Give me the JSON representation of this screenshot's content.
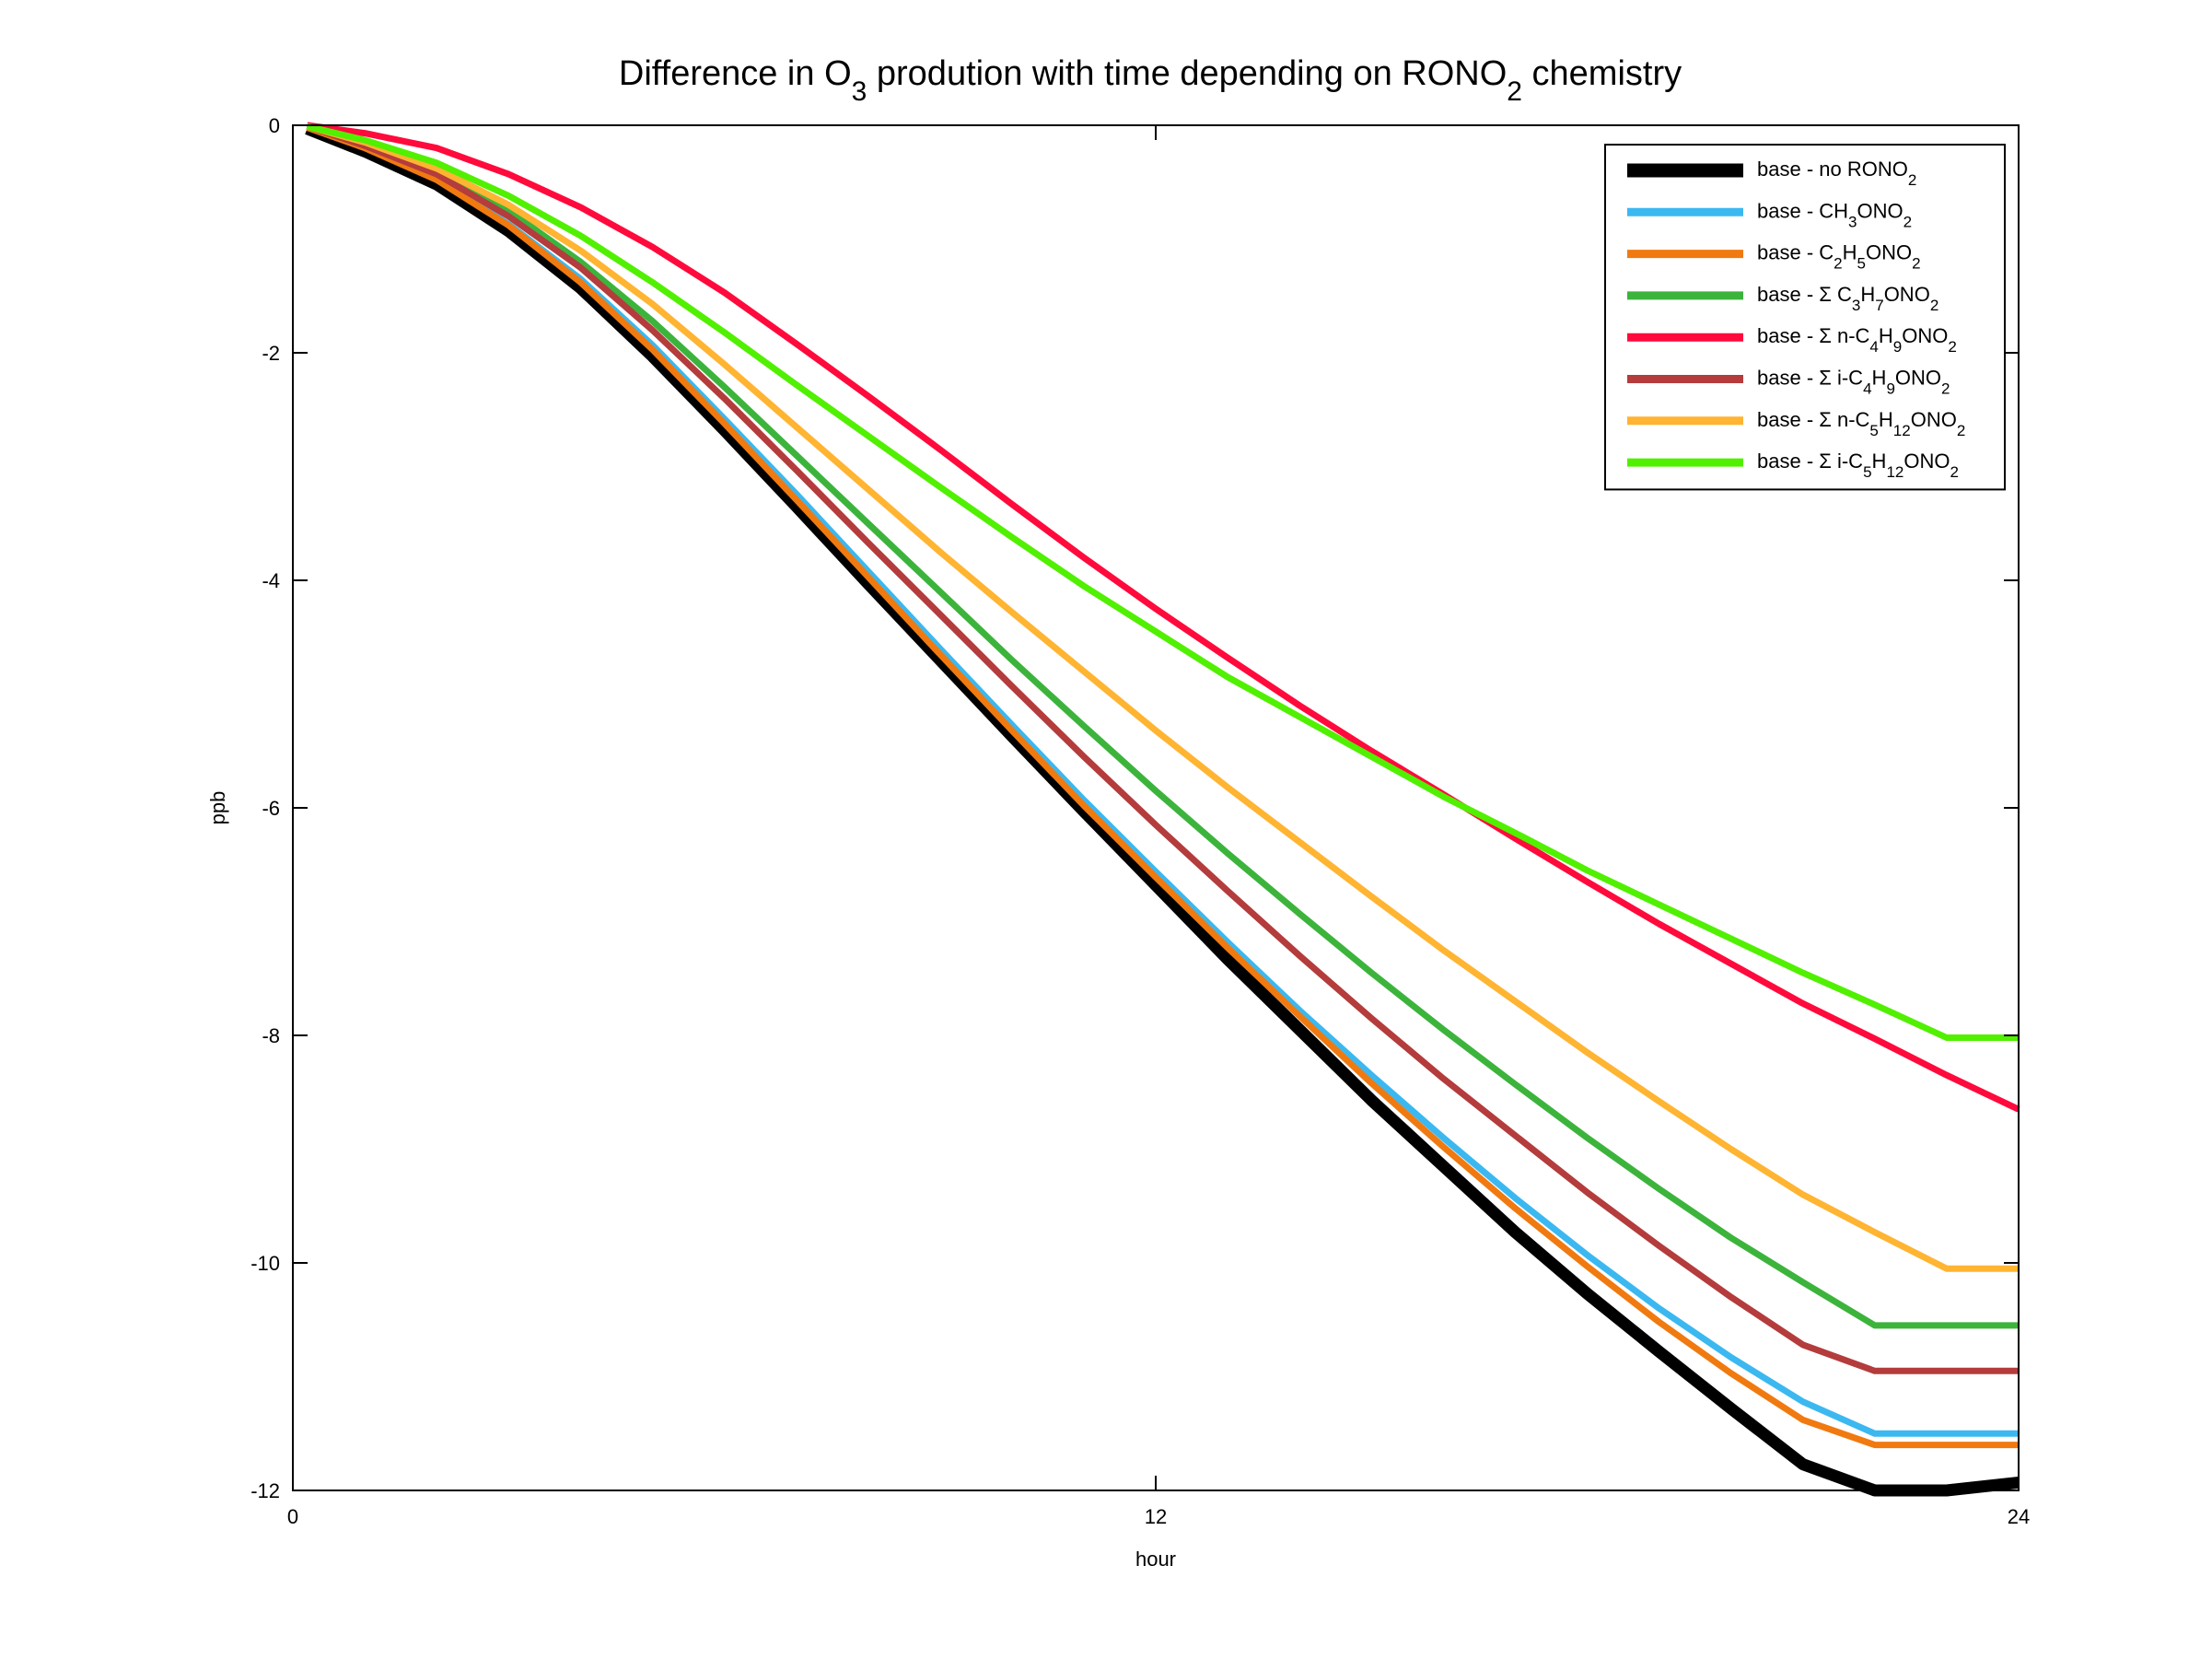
{
  "chart_data": {
    "type": "line",
    "title": {
      "parts": [
        {
          "t": "Difference in O",
          "sub": false
        },
        {
          "t": "3",
          "sub": true
        },
        {
          "t": " prodution with time depending on RONO",
          "sub": false
        },
        {
          "t": "2",
          "sub": true
        },
        {
          "t": " chemistry",
          "sub": false
        }
      ]
    },
    "xlabel": "hour",
    "ylabel": "ppb",
    "xlim": [
      0,
      24
    ],
    "ylim": [
      -12,
      0
    ],
    "xticks": [
      0,
      12,
      24
    ],
    "yticks": [
      0,
      -2,
      -4,
      -6,
      -8,
      -10,
      -12
    ],
    "grid": false,
    "legend_position": "top-right",
    "x": [
      0.2,
      1,
      2,
      3,
      4,
      5,
      6,
      7,
      8,
      9,
      10,
      11,
      12,
      13,
      14,
      15,
      16,
      17,
      18,
      19,
      20,
      21,
      22,
      23,
      24
    ],
    "series": [
      {
        "name": "base - no RONO2",
        "label_parts": [
          {
            "t": "base - no RONO",
            "sub": false
          },
          {
            "t": "2",
            "sub": true
          }
        ],
        "color": "#000000",
        "width": 13,
        "values": [
          -0.03,
          -0.23,
          -0.52,
          -0.93,
          -1.43,
          -2.03,
          -2.68,
          -3.35,
          -4.03,
          -4.7,
          -5.37,
          -6.03,
          -6.68,
          -7.33,
          -7.95,
          -8.57,
          -9.15,
          -9.73,
          -10.27,
          -10.78,
          -11.28,
          -11.77,
          -12.0,
          -12.0,
          -11.93
        ]
      },
      {
        "name": "base - CH3ONO2",
        "label_parts": [
          {
            "t": "base - CH",
            "sub": false
          },
          {
            "t": "3",
            "sub": true
          },
          {
            "t": "ONO",
            "sub": false
          },
          {
            "t": "2",
            "sub": true
          }
        ],
        "color": "#3cb8f0",
        "width": 7,
        "values": [
          -0.02,
          -0.19,
          -0.47,
          -0.87,
          -1.35,
          -1.93,
          -2.58,
          -3.24,
          -3.92,
          -4.6,
          -5.27,
          -5.93,
          -6.56,
          -7.18,
          -7.78,
          -8.35,
          -8.9,
          -9.43,
          -9.93,
          -10.4,
          -10.83,
          -11.22,
          -11.5,
          -11.5,
          -11.5
        ]
      },
      {
        "name": "base - C2H5ONO2",
        "label_parts": [
          {
            "t": "base - C",
            "sub": false
          },
          {
            "t": "2",
            "sub": true
          },
          {
            "t": "H",
            "sub": false
          },
          {
            "t": "5",
            "sub": true
          },
          {
            "t": "ONO",
            "sub": false
          },
          {
            "t": "2",
            "sub": true
          }
        ],
        "color": "#f07a10",
        "width": 7,
        "values": [
          -0.02,
          -0.2,
          -0.48,
          -0.88,
          -1.38,
          -1.97,
          -2.62,
          -3.29,
          -3.97,
          -4.65,
          -5.32,
          -5.98,
          -6.61,
          -7.23,
          -7.83,
          -8.42,
          -8.98,
          -9.52,
          -10.03,
          -10.52,
          -10.97,
          -11.38,
          -11.6,
          -11.6,
          -11.6
        ]
      },
      {
        "name": "base - Σ C3H7ONO2",
        "label_parts": [
          {
            "t": "base - Σ C",
            "sub": false
          },
          {
            "t": "3",
            "sub": true
          },
          {
            "t": "H",
            "sub": false
          },
          {
            "t": "7",
            "sub": true
          },
          {
            "t": "ONO",
            "sub": false
          },
          {
            "t": "2",
            "sub": true
          }
        ],
        "color": "#3cb43c",
        "width": 7,
        "values": [
          -0.01,
          -0.16,
          -0.4,
          -0.75,
          -1.2,
          -1.72,
          -2.3,
          -2.9,
          -3.5,
          -4.1,
          -4.7,
          -5.28,
          -5.85,
          -6.4,
          -6.93,
          -7.45,
          -7.95,
          -8.43,
          -8.9,
          -9.35,
          -9.78,
          -10.17,
          -10.55,
          -10.55,
          -10.55
        ]
      },
      {
        "name": "base - Σ n-C4H9ONO2",
        "label_parts": [
          {
            "t": "base - Σ n-C",
            "sub": false
          },
          {
            "t": "4",
            "sub": true
          },
          {
            "t": "H",
            "sub": false
          },
          {
            "t": "9",
            "sub": true
          },
          {
            "t": "ONO",
            "sub": false
          },
          {
            "t": "2",
            "sub": true
          }
        ],
        "color": "#ff0a3c",
        "width": 7,
        "values": [
          0.0,
          -0.07,
          -0.2,
          -0.43,
          -0.72,
          -1.07,
          -1.47,
          -1.92,
          -2.38,
          -2.85,
          -3.33,
          -3.8,
          -4.25,
          -4.68,
          -5.1,
          -5.5,
          -5.88,
          -6.27,
          -6.65,
          -7.02,
          -7.37,
          -7.72,
          -8.03,
          -8.35,
          -8.65
        ]
      },
      {
        "name": "base - Σ i-C4H9ONO2",
        "label_parts": [
          {
            "t": "base - Σ i-C",
            "sub": false
          },
          {
            "t": "4",
            "sub": true
          },
          {
            "t": "H",
            "sub": false
          },
          {
            "t": "9",
            "sub": true
          },
          {
            "t": "ONO",
            "sub": false
          },
          {
            "t": "2",
            "sub": true
          }
        ],
        "color": "#b43c3c",
        "width": 7,
        "values": [
          -0.01,
          -0.18,
          -0.43,
          -0.8,
          -1.25,
          -1.8,
          -2.4,
          -3.03,
          -3.67,
          -4.3,
          -4.93,
          -5.55,
          -6.15,
          -6.73,
          -7.3,
          -7.85,
          -8.38,
          -8.88,
          -9.38,
          -9.85,
          -10.3,
          -10.72,
          -10.95,
          -10.95,
          -10.95
        ]
      },
      {
        "name": "base - Σ n-C5H12ONO2",
        "label_parts": [
          {
            "t": "base - Σ n-C",
            "sub": false
          },
          {
            "t": "5",
            "sub": true
          },
          {
            "t": "H",
            "sub": false
          },
          {
            "t": "12",
            "sub": true
          },
          {
            "t": "ONO",
            "sub": false
          },
          {
            "t": "2",
            "sub": true
          }
        ],
        "color": "#ffb432",
        "width": 7,
        "values": [
          -0.01,
          -0.15,
          -0.38,
          -0.7,
          -1.1,
          -1.57,
          -2.1,
          -2.65,
          -3.2,
          -3.75,
          -4.28,
          -4.8,
          -5.32,
          -5.82,
          -6.3,
          -6.78,
          -7.25,
          -7.7,
          -8.15,
          -8.58,
          -9.0,
          -9.4,
          -9.73,
          -10.05,
          -10.05
        ]
      },
      {
        "name": "base - Σ i-C5H12ONO2",
        "label_parts": [
          {
            "t": "base - Σ i-C",
            "sub": false
          },
          {
            "t": "5",
            "sub": true
          },
          {
            "t": "H",
            "sub": false
          },
          {
            "t": "12",
            "sub": true
          },
          {
            "t": "ONO",
            "sub": false
          },
          {
            "t": "2",
            "sub": true
          }
        ],
        "color": "#50f000",
        "width": 7,
        "values": [
          -0.01,
          -0.13,
          -0.33,
          -0.62,
          -0.97,
          -1.38,
          -1.82,
          -2.28,
          -2.73,
          -3.18,
          -3.62,
          -4.05,
          -4.45,
          -4.85,
          -5.2,
          -5.55,
          -5.9,
          -6.22,
          -6.55,
          -6.85,
          -7.15,
          -7.45,
          -7.73,
          -8.02,
          -8.02
        ]
      }
    ]
  }
}
